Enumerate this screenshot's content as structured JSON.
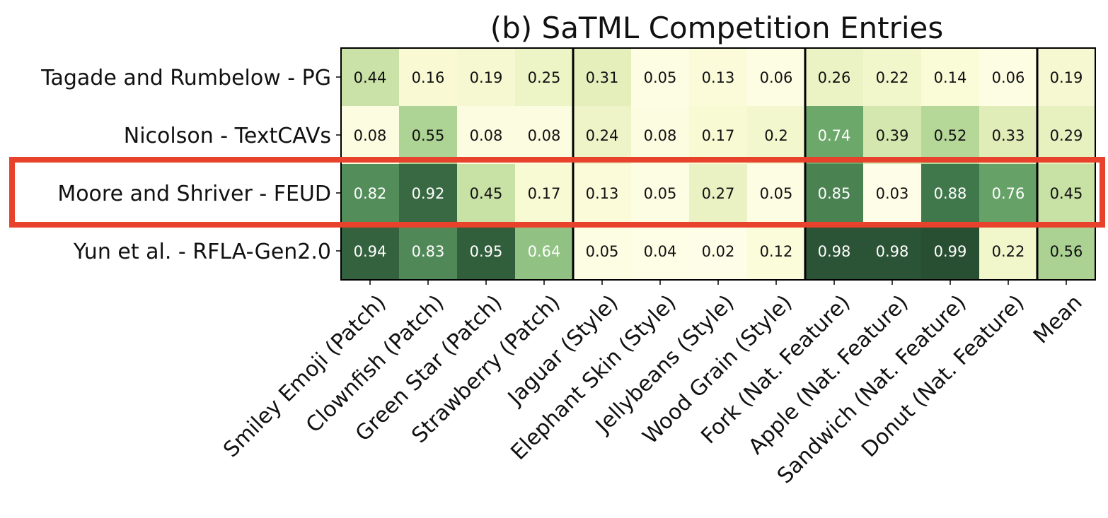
{
  "chart_data": {
    "type": "heatmap",
    "title": "(b) SaTML Competition Entries",
    "rows": [
      "Tagade and Rumbelow - PG",
      "Nicolson - TextCAVs",
      "Moore and Shriver - FEUD",
      "Yun et al. - RFLA-Gen2.0"
    ],
    "columns": [
      "Smiley Emoji (Patch)",
      "Clownfish (Patch)",
      "Green Star (Patch)",
      "Strawberry (Patch)",
      "Jaguar (Style)",
      "Elephant Skin (Style)",
      "Jellybeans (Style)",
      "Wood Grain (Style)",
      "Fork (Nat. Feature)",
      "Apple (Nat. Feature)",
      "Sandwich (Nat. Feature)",
      "Donut (Nat. Feature)",
      "Mean"
    ],
    "values": [
      [
        "0.44",
        "0.16",
        "0.19",
        "0.25",
        "0.31",
        "0.05",
        "0.13",
        "0.06",
        "0.26",
        "0.22",
        "0.14",
        "0.06",
        "0.19"
      ],
      [
        "0.08",
        "0.55",
        "0.08",
        "0.08",
        "0.24",
        "0.08",
        "0.17",
        "0.2",
        "0.74",
        "0.39",
        "0.52",
        "0.33",
        "0.29"
      ],
      [
        "0.82",
        "0.92",
        "0.45",
        "0.17",
        "0.13",
        "0.05",
        "0.27",
        "0.05",
        "0.85",
        "0.03",
        "0.88",
        "0.76",
        "0.45"
      ],
      [
        "0.94",
        "0.83",
        "0.95",
        "0.64",
        "0.05",
        "0.04",
        "0.02",
        "0.12",
        "0.98",
        "0.98",
        "0.99",
        "0.22",
        "0.56"
      ]
    ],
    "value_range": [
      0,
      1
    ],
    "group_separators_after_columns": [
      4,
      8,
      12
    ],
    "highlighted_row": 2,
    "colormap": "YlGn",
    "highlight_color": "#e8412c"
  }
}
